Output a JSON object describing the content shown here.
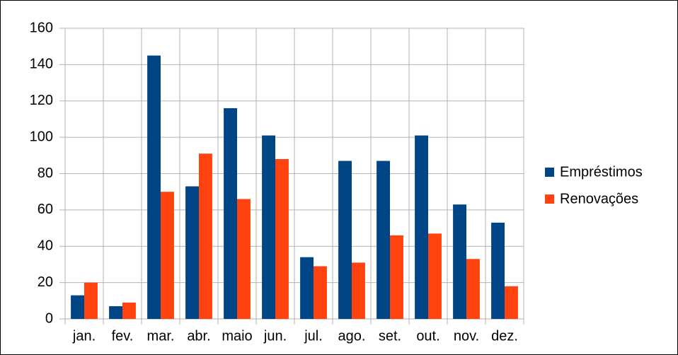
{
  "chart_data": {
    "type": "bar",
    "categories": [
      "jan.",
      "fev.",
      "mar.",
      "abr.",
      "maio",
      "jun.",
      "jul.",
      "ago.",
      "set.",
      "out.",
      "nov.",
      "dez."
    ],
    "series": [
      {
        "name": "Empréstimos",
        "color": "#004586",
        "values": [
          13,
          7,
          145,
          73,
          116,
          101,
          34,
          87,
          87,
          101,
          63,
          53
        ]
      },
      {
        "name": "Renovações",
        "color": "#ff420e",
        "values": [
          20,
          9,
          70,
          91,
          66,
          88,
          29,
          31,
          46,
          47,
          33,
          18
        ]
      }
    ],
    "ylim": [
      0,
      160
    ],
    "yticks": [
      0,
      20,
      40,
      60,
      80,
      100,
      120,
      140,
      160
    ],
    "grid": true,
    "legend": "right"
  }
}
